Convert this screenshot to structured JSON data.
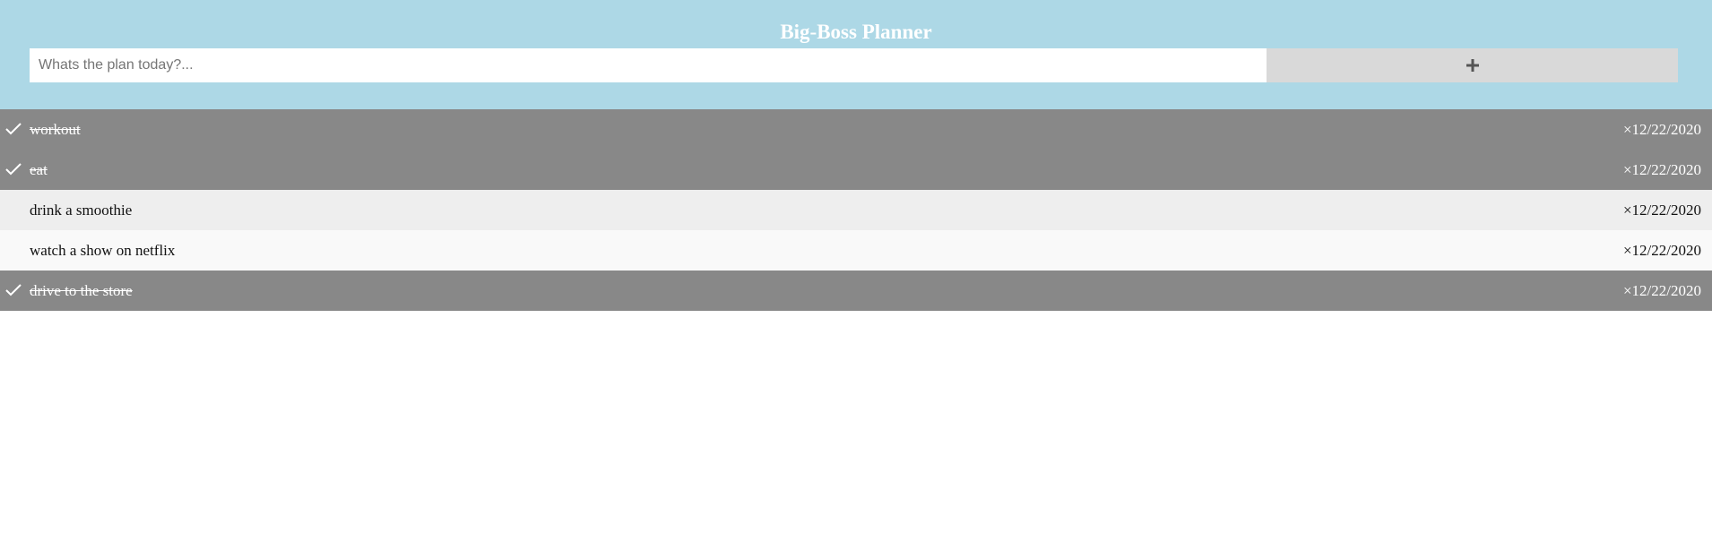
{
  "header": {
    "title": "Big-Boss Planner",
    "input_placeholder": "Whats the plan today?...",
    "input_value": "",
    "add_icon": "plus-icon",
    "colors": {
      "background": "#add8e6",
      "button": "#d9d9d9",
      "plus": "#555555"
    }
  },
  "todos": [
    {
      "text": "workout",
      "date": "12/22/2020",
      "close": "×",
      "done": true
    },
    {
      "text": "eat",
      "date": "12/22/2020",
      "close": "×",
      "done": true
    },
    {
      "text": "drink a smoothie",
      "date": "12/22/2020",
      "close": "×",
      "done": false
    },
    {
      "text": "watch a show on netflix",
      "date": "12/22/2020",
      "close": "×",
      "done": false
    },
    {
      "text": "drive to the store",
      "date": "12/22/2020",
      "close": "×",
      "done": true
    }
  ],
  "colors": {
    "done_row": "#888888",
    "odd_row": "#eeeeee",
    "even_row": "#f9f9f9"
  }
}
